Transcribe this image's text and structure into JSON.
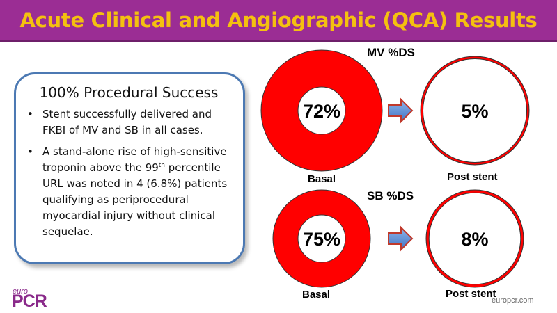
{
  "header": {
    "title": "Acute Clinical and Angiographic (QCA) Results"
  },
  "summary_box": {
    "heading": "100% Procedural Success",
    "bullets": [
      {
        "text": "Stent successfully delivered and FKBI of MV and SB in all cases."
      },
      {
        "text_before": "A stand-alone rise of high-sensitive troponin above the 99",
        "superscript": "th",
        "text_after": " percentile URL was noted in 4 (6.8%) patients qualifying as periprocedural myocardial injury without clinical sequelae."
      }
    ]
  },
  "chart_data": [
    {
      "type": "pie",
      "title": "MV %DS",
      "charts": [
        {
          "label": "Basal",
          "value": 72,
          "display": "72%"
        },
        {
          "label": "Post stent",
          "value": 5,
          "display": "5%"
        }
      ]
    },
    {
      "type": "pie",
      "title": "SB %DS",
      "charts": [
        {
          "label": "Basal",
          "value": 75,
          "display": "75%"
        },
        {
          "label": "Post stent",
          "value": 8,
          "display": "8%"
        }
      ]
    }
  ],
  "colors": {
    "title_bg": "#9b2d94",
    "title_text": "#f4c010",
    "donut_fill": "#ff0000",
    "arrow": "#5b8fd6"
  },
  "footer": {
    "logo_small": "euro",
    "logo_big": "PCR",
    "website": "europcr.com"
  }
}
